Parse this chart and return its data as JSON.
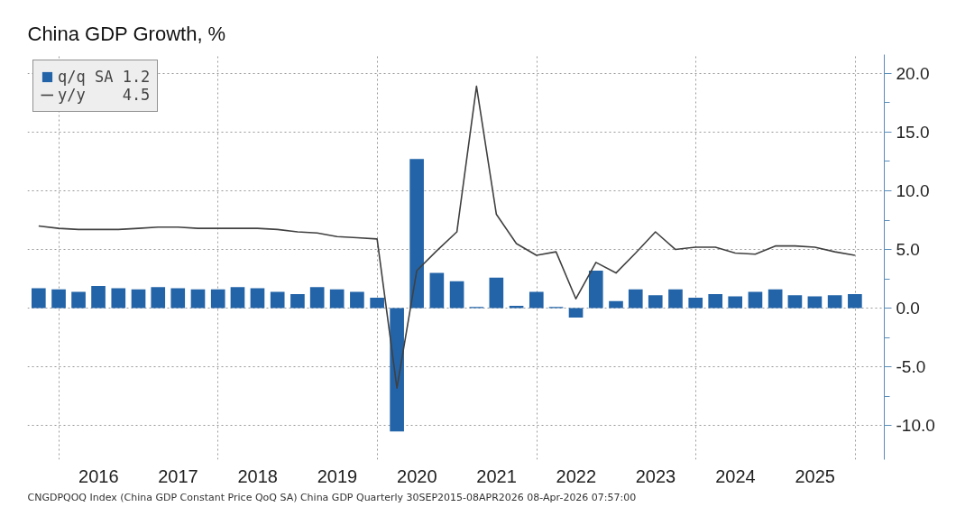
{
  "chart_data": {
    "type": "bar",
    "title": "China GDP Growth, %",
    "x": [
      "2015-09-30",
      "2015-12-31",
      "2016-03-31",
      "2016-06-30",
      "2016-09-30",
      "2016-12-31",
      "2017-03-31",
      "2017-06-30",
      "2017-09-30",
      "2017-12-31",
      "2018-03-31",
      "2018-06-30",
      "2018-09-30",
      "2018-12-31",
      "2019-03-31",
      "2019-06-30",
      "2019-09-30",
      "2019-12-31",
      "2020-03-31",
      "2020-06-30",
      "2020-09-30",
      "2020-12-31",
      "2021-03-31",
      "2021-06-30",
      "2021-09-30",
      "2021-12-31",
      "2022-03-31",
      "2022-06-30",
      "2022-09-30",
      "2022-12-31",
      "2023-03-31",
      "2023-06-30",
      "2023-09-30",
      "2023-12-31",
      "2024-03-31",
      "2024-06-30",
      "2024-09-30",
      "2024-12-31",
      "2025-03-31",
      "2025-06-30",
      "2025-09-30",
      "2025-12-31"
    ],
    "series": [
      {
        "name": "q/q SA 1.2",
        "color": "#2364a8",
        "values": [
          1.7,
          1.6,
          1.4,
          1.9,
          1.7,
          1.6,
          1.8,
          1.7,
          1.6,
          1.6,
          1.8,
          1.7,
          1.4,
          1.2,
          1.8,
          1.6,
          1.4,
          0.9,
          -10.5,
          12.7,
          3.0,
          2.3,
          0.1,
          2.6,
          0.2,
          1.4,
          0.1,
          -0.8,
          3.2,
          0.6,
          1.6,
          1.1,
          1.6,
          0.9,
          1.2,
          1.0,
          1.4,
          1.6,
          1.1,
          1.0,
          1.1,
          1.2
        ]
      },
      {
        "name": "y/y    4.5",
        "type": "line",
        "color": "#404040",
        "values": [
          7.0,
          6.8,
          6.7,
          6.7,
          6.7,
          6.8,
          6.9,
          6.9,
          6.8,
          6.8,
          6.8,
          6.8,
          6.7,
          6.5,
          6.4,
          6.1,
          6.0,
          5.9,
          -6.8,
          3.2,
          4.9,
          6.5,
          18.9,
          8.0,
          5.5,
          4.5,
          4.8,
          0.8,
          3.9,
          3.0,
          4.7,
          6.5,
          5.0,
          5.2,
          5.2,
          4.7,
          4.6,
          5.3,
          5.3,
          5.2,
          4.8,
          4.5
        ]
      }
    ],
    "xlim": [
      "2015-08-10",
      "2026-05-15"
    ],
    "xticks": [
      {
        "value": "2016-01-01",
        "label": null
      },
      {
        "value": "2016-07-01",
        "label": "2016"
      },
      {
        "value": "2017-07-01",
        "label": "2017"
      },
      {
        "value": "2018-01-01",
        "label": null
      },
      {
        "value": "2018-07-01",
        "label": "2018"
      },
      {
        "value": "2019-07-01",
        "label": "2019"
      },
      {
        "value": "2020-01-01",
        "label": null
      },
      {
        "value": "2020-07-01",
        "label": "2020"
      },
      {
        "value": "2021-07-01",
        "label": "2021"
      },
      {
        "value": "2022-01-01",
        "label": null
      },
      {
        "value": "2022-07-01",
        "label": "2022"
      },
      {
        "value": "2023-07-01",
        "label": "2023"
      },
      {
        "value": "2024-01-01",
        "label": null
      },
      {
        "value": "2024-07-01",
        "label": "2024"
      },
      {
        "value": "2025-07-01",
        "label": "2025"
      },
      {
        "value": "2026-01-01",
        "label": null
      }
    ],
    "ylim": [
      -12.9,
      21.6
    ],
    "yticks": [
      {
        "value": -10,
        "label": "-10.0"
      },
      {
        "value": -5,
        "label": "-5.0"
      },
      {
        "value": 0,
        "label": "0.0"
      },
      {
        "value": 5,
        "label": "5.0"
      },
      {
        "value": 10,
        "label": "10.0"
      },
      {
        "value": 15,
        "label": "15.0"
      },
      {
        "value": 20,
        "label": "20.0"
      }
    ],
    "grid": true,
    "legend": "top left",
    "annotations": [
      "CNGDPQOQ Index (China GDP Constant Price QoQ SA) China GDP Quarterly 30SEP2015-08APR2026   08-Apr-2026 07:57:00"
    ]
  }
}
